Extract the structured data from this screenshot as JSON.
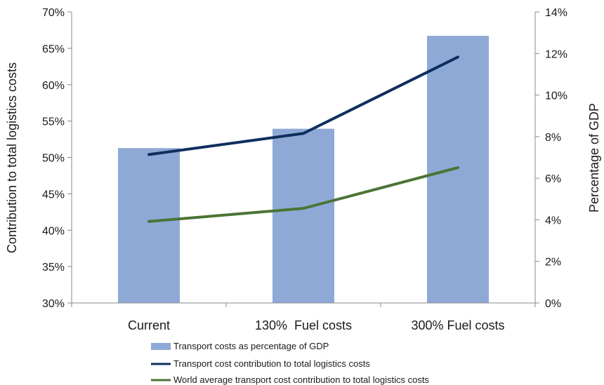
{
  "chart_data": {
    "type": "bar+line",
    "categories": [
      "Current",
      "130%  Fuel costs",
      "300% Fuel costs"
    ],
    "ylabel_left": "Contribution to total logistics costs",
    "ylabel_right": "Percentage of GDP",
    "left_axis": {
      "range": [
        0.3,
        0.7
      ],
      "ticks": [
        "30%",
        "35%",
        "40%",
        "45%",
        "50%",
        "55%",
        "60%",
        "65%",
        "70%"
      ]
    },
    "right_axis": {
      "range": [
        0,
        0.14
      ],
      "ticks": [
        "0%",
        "2%",
        "4%",
        "6%",
        "8%",
        "10%",
        "12%",
        "14%"
      ]
    },
    "series": [
      {
        "name": "Transport costs as percentage of GDP",
        "kind": "bar",
        "axis": "right",
        "values": [
          0.0745,
          0.0838,
          0.1285
        ],
        "color": "#8fa9d6"
      },
      {
        "name": "Transport cost contribution to total logistics costs",
        "kind": "line",
        "axis": "left",
        "values": [
          0.504,
          0.533,
          0.638
        ],
        "color": "#0e2f5e"
      },
      {
        "name": "World average transport cost contribution to total logistics costs",
        "kind": "line",
        "axis": "left",
        "values": [
          0.412,
          0.43,
          0.486
        ],
        "color": "#4b7436"
      }
    ],
    "grid": false,
    "legend_position": "bottom"
  }
}
